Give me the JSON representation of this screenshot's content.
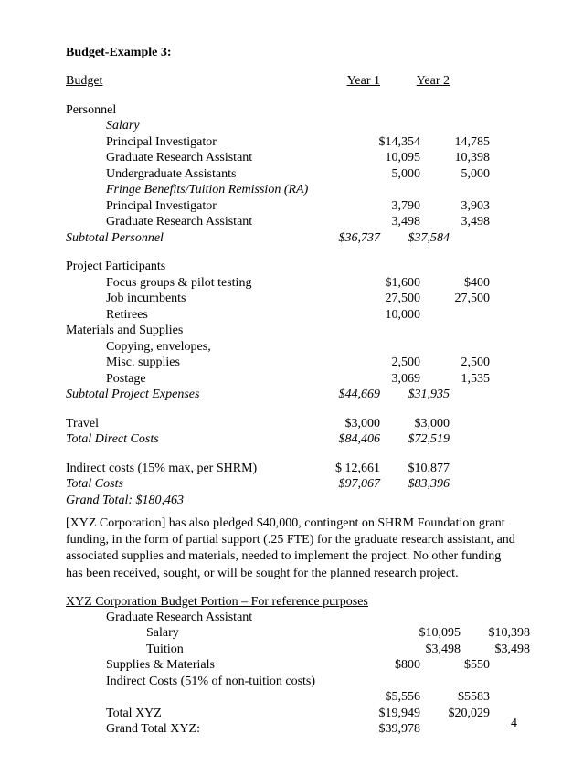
{
  "title": "Budget-Example 3:",
  "header": {
    "label": "Budget",
    "y1": "Year 1",
    "y2": "Year 2"
  },
  "personnel": {
    "label": "Personnel",
    "salary": "Salary",
    "rows": [
      {
        "l": "Principal Investigator",
        "y1": "$14,354",
        "y2": "14,785"
      },
      {
        "l": "Graduate Research Assistant",
        "y1": "10,095",
        "y2": "10,398"
      },
      {
        "l": "Undergraduate Assistants",
        "y1": "5,000",
        "y2": "5,000"
      }
    ],
    "fringe": "Fringe Benefits/Tuition Remission (RA)",
    "frows": [
      {
        "l": "Principal Investigator",
        "y1": "3,790",
        "y2": "3,903"
      },
      {
        "l": "Graduate Research Assistant",
        "y1": "3,498",
        "y2": "3,498"
      }
    ],
    "subtotal": {
      "l": "Subtotal Personnel",
      "y1": "$36,737",
      "y2": "$37,584"
    }
  },
  "participants": {
    "label": "Project Participants",
    "rows": [
      {
        "l": "Focus groups & pilot testing",
        "y1": "$1,600",
        "y2": "$400"
      },
      {
        "l": "Job incumbents",
        "y1": "27,500",
        "y2": "27,500"
      },
      {
        "l": "Retirees",
        "y1": "10,000",
        "y2": ""
      }
    ]
  },
  "materials": {
    "label": "Materials and Supplies",
    "line1": "Copying, envelopes,",
    "rows": [
      {
        "l": "Misc. supplies",
        "y1": "2,500",
        "y2": "2,500"
      },
      {
        "l": "Postage",
        "y1": "3,069",
        "y2": "1,535"
      }
    ],
    "subtotal": {
      "l": "Subtotal Project Expenses",
      "y1": "$44,669",
      "y2": "$31,935"
    }
  },
  "travel": {
    "l": "Travel",
    "y1": "$3,000",
    "y2": "$3,000"
  },
  "totalDirect": {
    "l": "Total Direct Costs",
    "y1": "$84,406",
    "y2": "$72,519"
  },
  "indirect": {
    "l": "Indirect costs (15% max, per SHRM)",
    "y1": "$ 12,661",
    "y2": "$10,877"
  },
  "totalCosts": {
    "l": "Total Costs",
    "y1": "$97,067",
    "y2": "$83,396"
  },
  "grandTotal": "Grand Total:  $180,463",
  "paragraph": "[XYZ Corporation] has also pledged $40,000, contingent on SHRM Foundation grant funding, in the form of partial support (.25 FTE) for the graduate research assistant, and associated supplies and materials, needed to implement the project.  No other funding has been received, sought, or will be sought for the planned research project.",
  "xyz": {
    "heading": "XYZ Corporation Budget Portion – For reference purposes",
    "gra": "Graduate Research Assistant",
    "rows": [
      {
        "l": "Salary",
        "y1": "$10,095",
        "y2": "$10,398",
        "ind": 2
      },
      {
        "l": "Tuition",
        "y1": "$3,498",
        "y2": "$3,498",
        "ind": 2
      },
      {
        "l": "Supplies & Materials",
        "y1": "$800",
        "y2": "$550",
        "ind": 1
      },
      {
        "l": "Indirect Costs (51% of non-tuition costs)",
        "y1": "",
        "y2": "",
        "ind": 1
      },
      {
        "l": "",
        "y1": "$5,556",
        "y2": "$5583",
        "ind": 1
      },
      {
        "l": "Total XYZ",
        "y1": "$19,949",
        "y2": "$20,029",
        "ind": 1
      },
      {
        "l": "Grand Total XYZ:",
        "y1": "$39,978",
        "y2": "",
        "ind": 1
      }
    ]
  },
  "pageNum": "4"
}
